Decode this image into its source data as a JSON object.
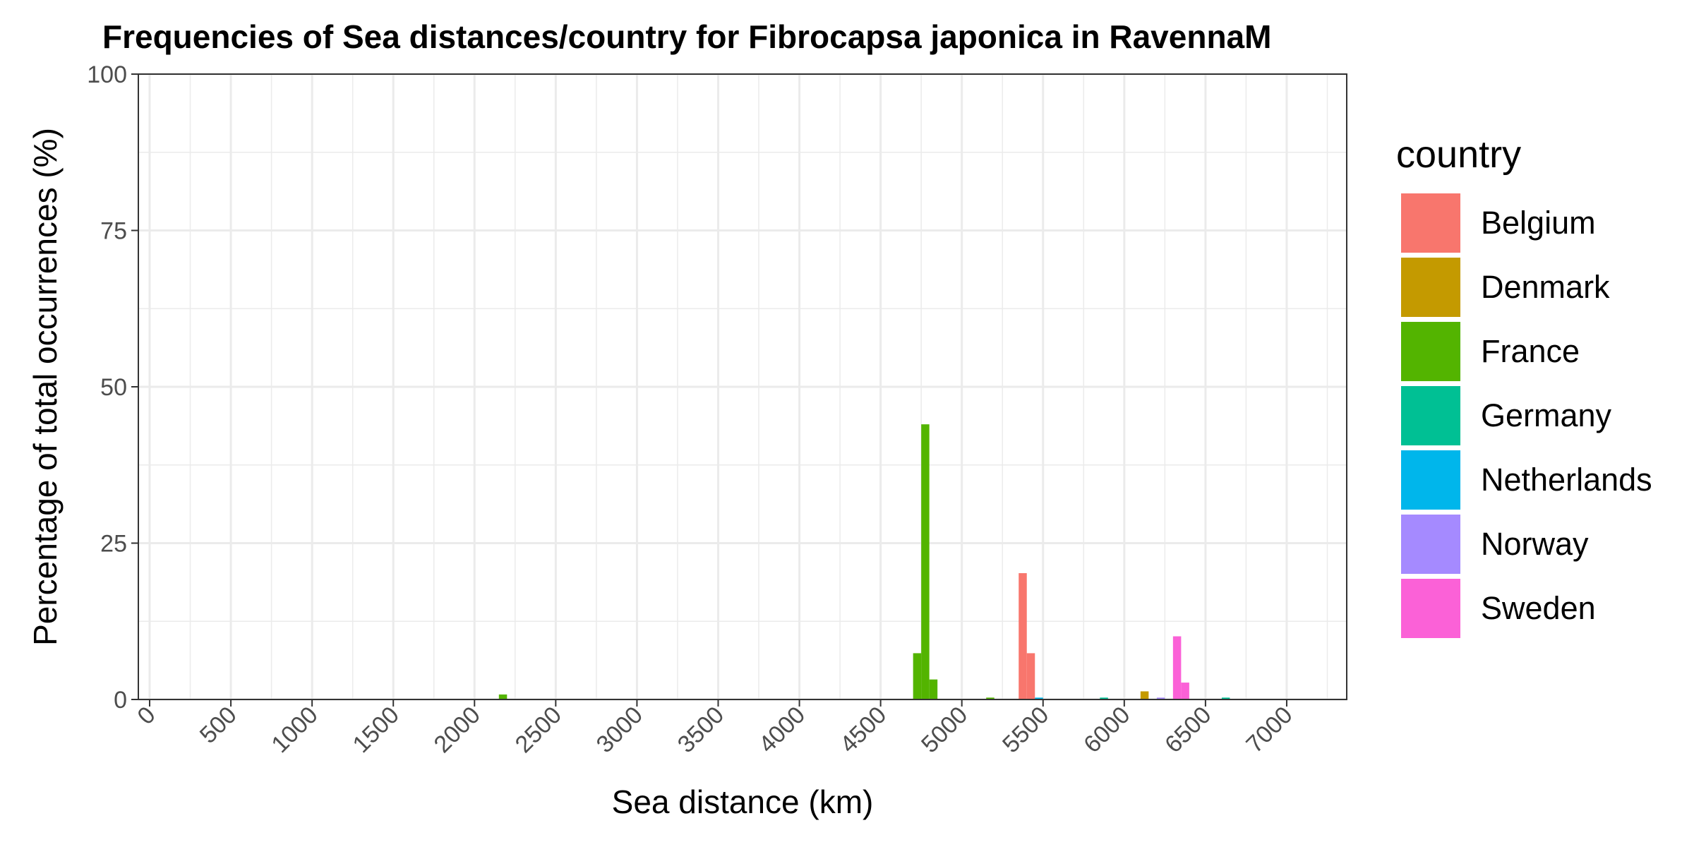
{
  "chart_data": {
    "type": "bar",
    "title": "Frequencies of Sea distances/country for Fibrocapsa japonica in RavennaM",
    "xlabel": "Sea distance (km)",
    "ylabel": "Percentage of total occurrences (%)",
    "xlim": [
      0,
      7300
    ],
    "ylim": [
      0,
      100
    ],
    "x_ticks": [
      0,
      500,
      1000,
      1500,
      2000,
      2500,
      3000,
      3500,
      4000,
      4500,
      5000,
      5500,
      6000,
      6500,
      7000
    ],
    "y_ticks": [
      0,
      25,
      50,
      75,
      100
    ],
    "bin_width": 50,
    "grid": true,
    "legend": {
      "title": "country",
      "position": "right"
    },
    "series": [
      {
        "name": "Belgium",
        "color": "#F8766D",
        "bars": [
          {
            "x": 5375,
            "y": 20.2
          },
          {
            "x": 5425,
            "y": 7.4
          }
        ]
      },
      {
        "name": "Denmark",
        "color": "#C49A00",
        "bars": [
          {
            "x": 6125,
            "y": 1.3
          }
        ]
      },
      {
        "name": "France",
        "color": "#53B400",
        "bars": [
          {
            "x": 2175,
            "y": 0.8
          },
          {
            "x": 4725,
            "y": 7.4
          },
          {
            "x": 4775,
            "y": 44.0
          },
          {
            "x": 4825,
            "y": 3.2
          },
          {
            "x": 5175,
            "y": 0.3
          }
        ]
      },
      {
        "name": "Germany",
        "color": "#00C094",
        "bars": [
          {
            "x": 5875,
            "y": 0.3
          },
          {
            "x": 6625,
            "y": 0.3
          }
        ]
      },
      {
        "name": "Netherlands",
        "color": "#00B6EB",
        "bars": [
          {
            "x": 5475,
            "y": 0.3
          }
        ]
      },
      {
        "name": "Norway",
        "color": "#A58AFF",
        "bars": [
          {
            "x": 6225,
            "y": 0.3
          }
        ]
      },
      {
        "name": "Sweden",
        "color": "#FB61D7",
        "bars": [
          {
            "x": 6325,
            "y": 10.1
          },
          {
            "x": 6375,
            "y": 2.7
          }
        ]
      }
    ]
  }
}
